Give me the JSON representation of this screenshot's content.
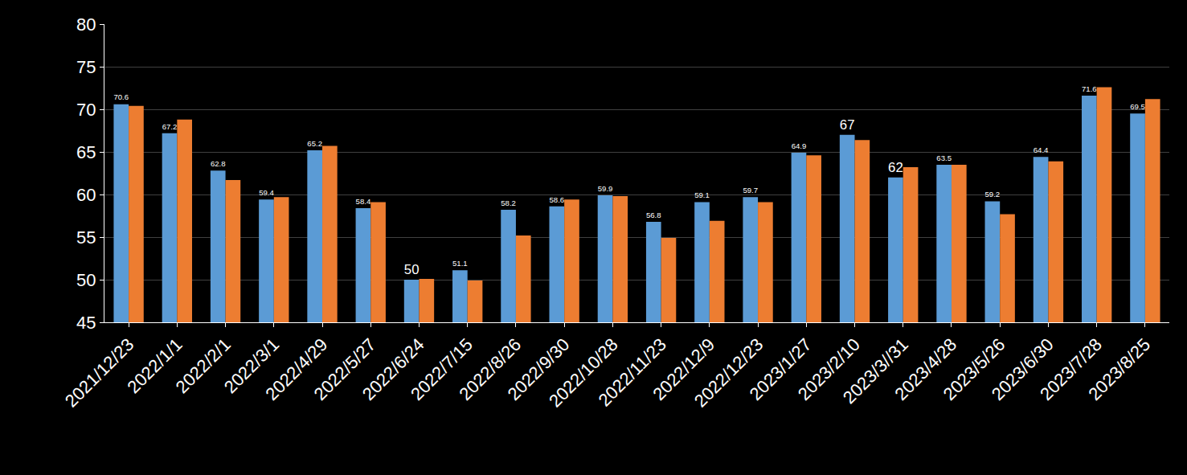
{
  "chart_data": {
    "type": "bar",
    "categories": [
      "2021/12/23",
      "2022/1/1",
      "2022/2/1",
      "2022/3/1",
      "2022/4/29",
      "2022/5/27",
      "2022/6/24",
      "2022/7/15",
      "2022/8/26",
      "2022/9/30",
      "2022/10/28",
      "2022/11/23",
      "2022/12/9",
      "2022/12/23",
      "2023/1/27",
      "2023/2/10",
      "2023/3//31",
      "2023/4/28",
      "2023/5/26",
      "2023/6/30",
      "2023/7/28",
      "2023/8/25"
    ],
    "series": [
      {
        "color": "#5b9bd5",
        "data_labels": true,
        "values": [
          70.6,
          67.2,
          62.8,
          59.4,
          65.2,
          58.4,
          50,
          51.1,
          58.2,
          58.6,
          59.9,
          56.8,
          59.1,
          59.7,
          64.9,
          67,
          62,
          63.5,
          59.2,
          64.4,
          71.6,
          69.5
        ]
      },
      {
        "color": "#ed7d31",
        "values": [
          70.4,
          68.8,
          61.7,
          59.7,
          65.7,
          59.1,
          50.1,
          49.9,
          55.2,
          59.4,
          59.8,
          54.9,
          56.9,
          59.1,
          64.6,
          66.4,
          63.2,
          63.5,
          57.7,
          63.9,
          72.6,
          71.2
        ]
      }
    ],
    "ylim": [
      45,
      80
    ],
    "yticks": [
      45,
      50,
      55,
      60,
      65,
      70,
      75,
      80
    ],
    "grid": true
  }
}
